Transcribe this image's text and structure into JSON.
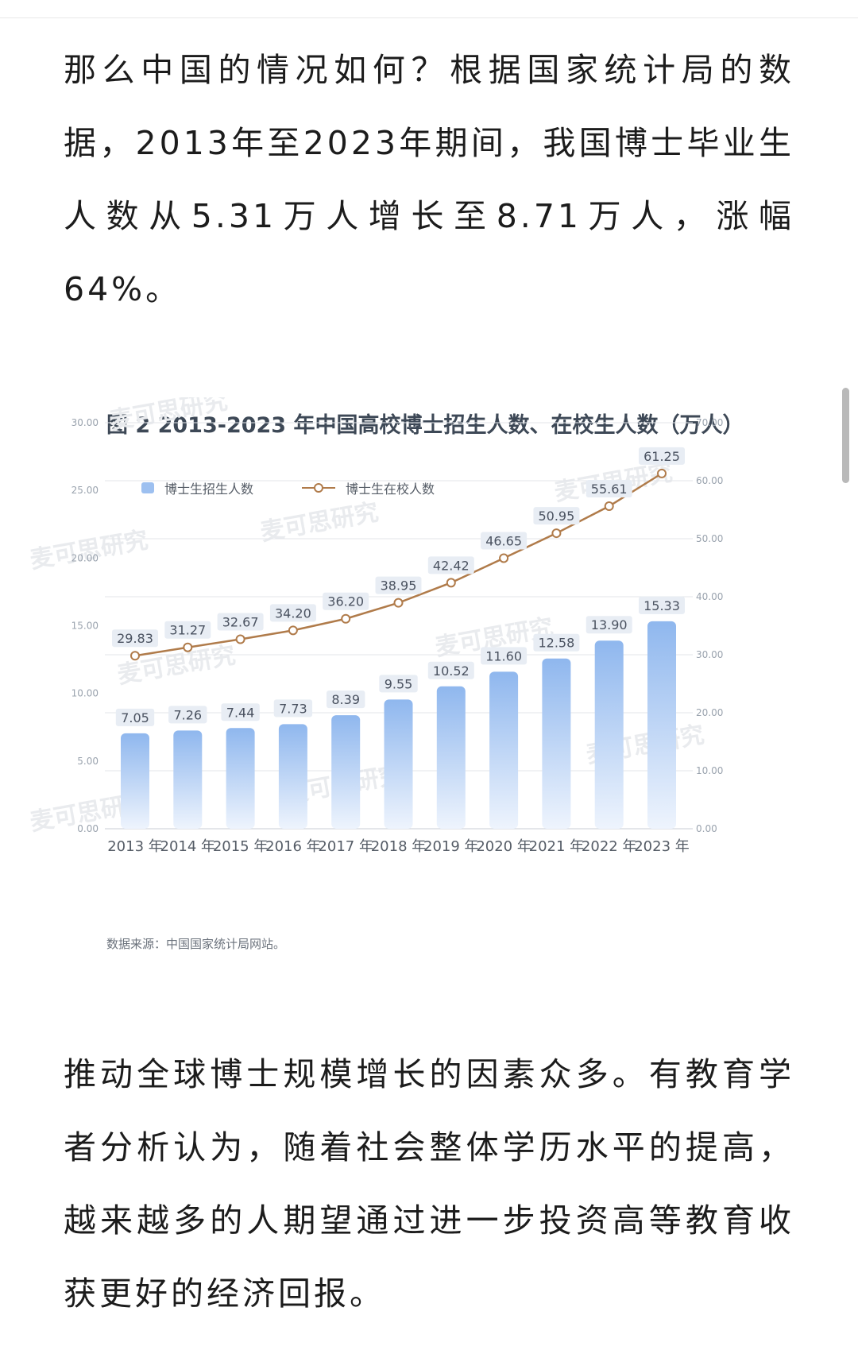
{
  "article": {
    "paragraph1": "那么中国的情况如何？根据国家统计局的数据，2013年至2023年期间，我国博士毕业生人数从5.31万人增长至8.71万人，涨幅64%。",
    "paragraph2": "推动全球博士规模增长的因素众多。有教育学者分析认为，随着社会整体学历水平的提高，越来越多的人期望通过进一步投资高等教育收获更好的经济回报。"
  },
  "watermark_text": "麦可思研究",
  "colors": {
    "bar_top": "#8fb7ee",
    "bar_bottom": "#eef4fd",
    "line": "#b07b4a",
    "label_bg": "#e8edf4"
  },
  "chart_data": {
    "type": "bar",
    "title": "图 2   2013-2023 年中国高校博士招生人数、在校生人数（万人）",
    "categories": [
      "2013 年",
      "2014 年",
      "2015 年",
      "2016 年",
      "2017 年",
      "2018 年",
      "2019 年",
      "2020 年",
      "2021 年",
      "2022 年",
      "2023 年"
    ],
    "series": [
      {
        "name": "博士生招生人数",
        "kind": "bar",
        "axis": "left",
        "values": [
          7.05,
          7.26,
          7.44,
          7.73,
          8.39,
          9.55,
          10.52,
          11.6,
          12.58,
          13.9,
          15.33
        ]
      },
      {
        "name": "博士生在校人数",
        "kind": "line",
        "axis": "right",
        "values": [
          29.83,
          31.27,
          32.67,
          34.2,
          36.2,
          38.95,
          42.42,
          46.65,
          50.95,
          55.61,
          61.25
        ]
      }
    ],
    "y_left": {
      "min": 0,
      "max": 30,
      "ticks": [
        "0.00",
        "5.00",
        "10.00",
        "15.00",
        "20.00",
        "25.00",
        "30.00"
      ]
    },
    "y_right": {
      "min": 0,
      "max": 70,
      "ticks": [
        "0.00",
        "10.00",
        "20.00",
        "30.00",
        "40.00",
        "50.00",
        "60.00",
        "70.00"
      ]
    },
    "grid": true,
    "legend_position": "top-left",
    "source": "数据来源：中国国家统计局网站。"
  }
}
